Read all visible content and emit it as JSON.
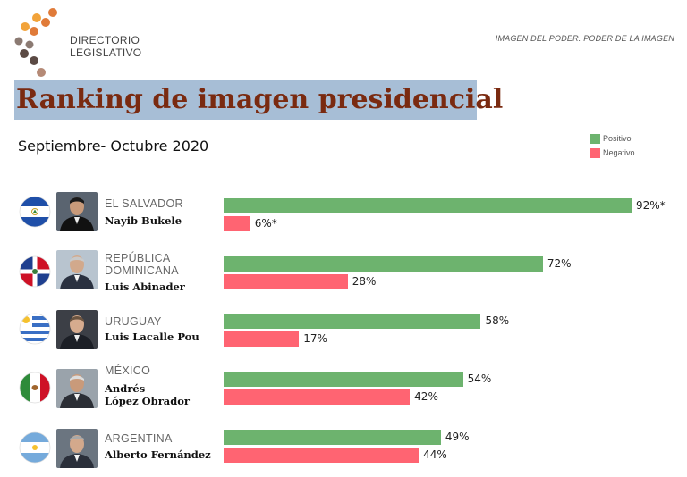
{
  "header": {
    "logo_text": "DIRECTORIO\nLEGISLATIVO",
    "tagline": "IMAGEN DEL PODER. PODER DE LA IMAGEN",
    "title": "Ranking de imagen presidencial",
    "subtitle": "Septiembre- Octubre 2020"
  },
  "colors": {
    "positive": "#6db36e",
    "negative": "#ff6472",
    "title": "#7a2a10",
    "title_band": "#a7bed6"
  },
  "chart_data": {
    "type": "bar",
    "title": "Ranking de imagen presidencial",
    "subtitle": "Septiembre- Octubre 2020",
    "legend": {
      "position": "top-right",
      "entries": [
        "Positivo",
        "Negativo"
      ]
    },
    "categories": [
      {
        "country": "EL SALVADOR",
        "president": "Nayib Bukele",
        "flag": "el-salvador-flag"
      },
      {
        "country": "REPÚBLICA\nDOMINICANA",
        "president": "Luis Abinader",
        "flag": "dominican-republic-flag"
      },
      {
        "country": "URUGUAY",
        "president": "Luis Lacalle Pou",
        "flag": "uruguay-flag"
      },
      {
        "country": "MÉXICO",
        "president": "Andrés\nLópez Obrador",
        "flag": "mexico-flag"
      },
      {
        "country": "ARGENTINA",
        "president": "Alberto Fernández",
        "flag": "argentina-flag"
      }
    ],
    "series": [
      {
        "name": "Positivo",
        "values": [
          92,
          72,
          58,
          54,
          49
        ],
        "labels": [
          "92%*",
          "72%",
          "58%",
          "54%",
          "49%"
        ]
      },
      {
        "name": "Negativo",
        "values": [
          6,
          28,
          17,
          42,
          44
        ],
        "labels": [
          "6%*",
          "28%",
          "17%",
          "42%",
          "44%"
        ]
      }
    ],
    "xlim": [
      0,
      100
    ]
  }
}
